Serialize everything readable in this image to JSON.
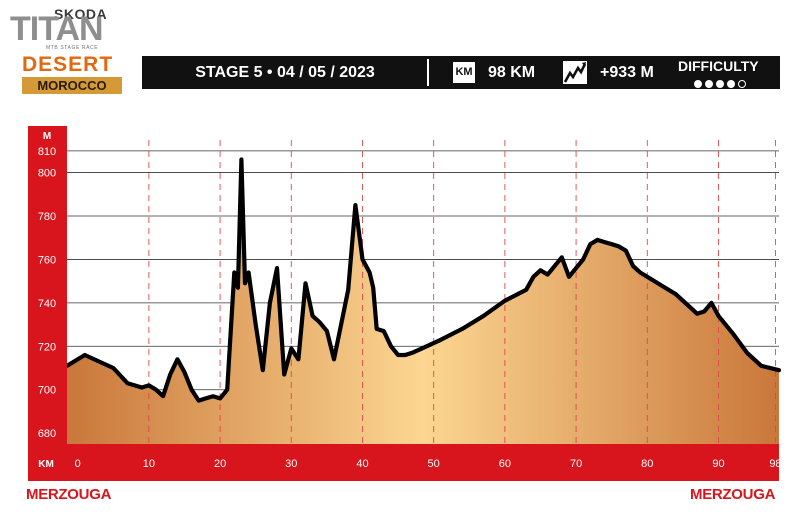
{
  "logo": {
    "brand": "SKODA",
    "name": "TITAN",
    "tagline": "MTB STAGE RACE",
    "desert": "DESERT",
    "region": "MOROCCO"
  },
  "header": {
    "stage": "STAGE 5 • 04 / 05 / 2023",
    "km_badge": "KM",
    "distance": "98 KM",
    "elevation_icon": "mountain-elevation-icon",
    "elevation": "+933 M",
    "difficulty_label": "DIFFICULTY",
    "difficulty_level": 4,
    "difficulty_max": 5
  },
  "places": {
    "start": "MERZOUGA",
    "finish": "MERZOUGA"
  },
  "colors": {
    "accent_red": "#d8151d",
    "banner_black": "#111111",
    "fill_light": "#fcd692",
    "fill_dark": "#c9773a"
  },
  "chart_data": {
    "type": "area",
    "ylabel": "M",
    "xlabel": "KM",
    "ylim": [
      675,
      815
    ],
    "xlim": [
      -1.5,
      98.5
    ],
    "yticks": [
      680,
      700,
      720,
      740,
      760,
      780,
      800,
      810
    ],
    "xticks": [
      0,
      10,
      20,
      30,
      40,
      50,
      60,
      70,
      80,
      90,
      98
    ],
    "grid": true,
    "x": [
      -1.5,
      1,
      3,
      5,
      7,
      9,
      10,
      11,
      12,
      13,
      14,
      15,
      16,
      17,
      18,
      19,
      20,
      21,
      22,
      22.5,
      23,
      23.5,
      24,
      25,
      26,
      27,
      28,
      29,
      30,
      31,
      32,
      33,
      34,
      35,
      36,
      38,
      39,
      40,
      41,
      41.5,
      42,
      43,
      44,
      45,
      46,
      47,
      49,
      51,
      54,
      57,
      60,
      63,
      64,
      65,
      66,
      67,
      68,
      69,
      70,
      71,
      72,
      73,
      74,
      75,
      76,
      77,
      78,
      79,
      80,
      82,
      84,
      86,
      87,
      88,
      89,
      90,
      92,
      94,
      96,
      98.5
    ],
    "values": [
      711,
      716,
      713,
      710,
      703,
      701,
      702,
      700,
      697,
      707,
      714,
      708,
      700,
      695,
      696,
      697,
      696,
      700,
      754,
      747,
      806,
      749,
      754,
      730,
      709,
      740,
      756,
      707,
      719,
      714,
      749,
      734,
      731,
      727,
      714,
      746,
      785,
      760,
      754,
      747,
      728,
      727,
      720,
      716,
      716,
      717,
      720,
      723,
      728,
      734,
      741,
      746,
      752,
      755,
      753,
      757,
      761,
      752,
      756,
      760,
      767,
      769,
      768,
      767,
      766,
      764,
      757,
      754,
      752,
      748,
      744,
      738,
      735,
      736,
      740,
      734,
      726,
      717,
      711,
      709
    ]
  }
}
